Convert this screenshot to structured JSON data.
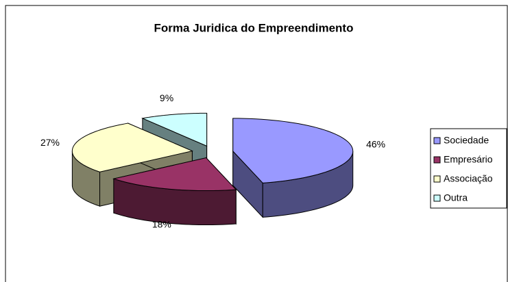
{
  "chart_data": {
    "type": "pie3d",
    "title": "Forma Juridica do Empreendimento",
    "categories": [
      "Sociedade",
      "Empresário",
      "Associação",
      "Outra"
    ],
    "values": [
      46,
      18,
      27,
      9
    ],
    "value_labels": [
      "46%",
      "18%",
      "27%",
      "9%"
    ],
    "colors": [
      "#9999ff",
      "#993366",
      "#ffffcc",
      "#ccffff"
    ],
    "legend": "right"
  }
}
